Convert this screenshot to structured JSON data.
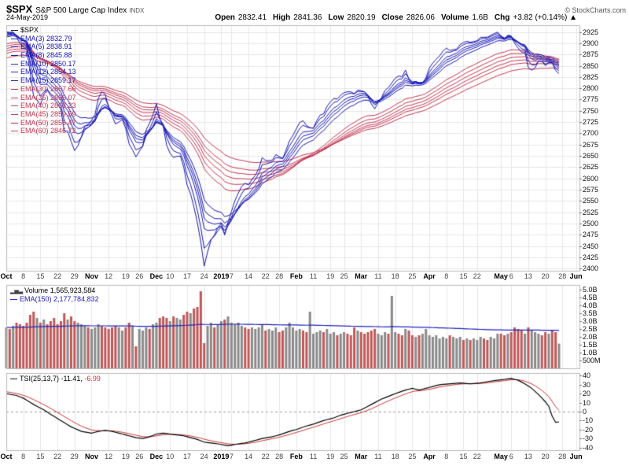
{
  "header": {
    "symbol": "$SPX",
    "name": "S&P 500 Large Cap Index",
    "exchange": "INDX",
    "date": "24-May-2019",
    "attribution": "© StockCharts.com",
    "quote": [
      {
        "label": "Open",
        "value": "2832.41"
      },
      {
        "label": "High",
        "value": "2841.36"
      },
      {
        "label": "Low",
        "value": "2820.19"
      },
      {
        "label": "Close",
        "value": "2826.06"
      },
      {
        "label": "Volume",
        "value": "1.6B"
      },
      {
        "label": "Chg",
        "value": "+3.82 (+0.14%) ▲"
      }
    ]
  },
  "legend": {
    "symbol_label": "$SPX",
    "emas": [
      {
        "label": "EMA(3)",
        "value": "2832.79",
        "group": "fast"
      },
      {
        "label": "EMA(5)",
        "value": "2838.91",
        "group": "fast"
      },
      {
        "label": "EMA(8)",
        "value": "2845.88",
        "group": "fast"
      },
      {
        "label": "EMA(10)",
        "value": "2850.17",
        "group": "fast"
      },
      {
        "label": "EMA(12)",
        "value": "2854.13",
        "group": "fast"
      },
      {
        "label": "EMA(15)",
        "value": "2859.17",
        "group": "fast"
      },
      {
        "label": "EMA(30)",
        "value": "2867.66",
        "group": "slow"
      },
      {
        "label": "EMA(35)",
        "value": "2866.07",
        "group": "slow"
      },
      {
        "label": "EMA(40)",
        "value": "2863.23",
        "group": "slow"
      },
      {
        "label": "EMA(45)",
        "value": "2859.59",
        "group": "slow"
      },
      {
        "label": "EMA(50)",
        "value": "2855.47",
        "group": "slow"
      },
      {
        "label": "EMA(60)",
        "value": "2846.72",
        "group": "slow"
      }
    ]
  },
  "volume_panel": {
    "label": "Volume",
    "value": "1,565,923,584",
    "ema_label": "EMA(150)",
    "ema_value": "2,177,784,832"
  },
  "tsi_panel": {
    "label": "TSI(25,13,7)",
    "value": "-11.41,",
    "signal_value": "-6.99"
  },
  "colors": {
    "ema_fast": "#1414b4",
    "ema_slow": "#c23450",
    "volume_up": "#8a8a8a",
    "volume_down": "#c05858",
    "volume_ema": "#2020c0",
    "tsi_line": "#000000",
    "tsi_signal": "#d03030",
    "grid": "#e7e7e7",
    "border": "#b8b8b8",
    "axis_text": "#111111"
  },
  "chart_data": {
    "type": "line",
    "total_days": 168,
    "x_labels": [
      {
        "t": "Oct",
        "d": 0,
        "b": true
      },
      {
        "t": "8",
        "d": 5
      },
      {
        "t": "15",
        "d": 10
      },
      {
        "t": "22",
        "d": 15
      },
      {
        "t": "29",
        "d": 20
      },
      {
        "t": "Nov",
        "d": 25,
        "b": true
      },
      {
        "t": "12",
        "d": 30
      },
      {
        "t": "19",
        "d": 35
      },
      {
        "t": "26",
        "d": 39
      },
      {
        "t": "Dec",
        "d": 44,
        "b": true
      },
      {
        "t": "10",
        "d": 48
      },
      {
        "t": "17",
        "d": 53
      },
      {
        "t": "24",
        "d": 58
      },
      {
        "t": "2019",
        "d": 63,
        "b": true
      },
      {
        "t": "7",
        "d": 66
      },
      {
        "t": "14",
        "d": 71
      },
      {
        "t": "22",
        "d": 76
      },
      {
        "t": "28",
        "d": 80
      },
      {
        "t": "Feb",
        "d": 85,
        "b": true
      },
      {
        "t": "11",
        "d": 90
      },
      {
        "t": "19",
        "d": 95
      },
      {
        "t": "25",
        "d": 99
      },
      {
        "t": "Mar",
        "d": 104,
        "b": true
      },
      {
        "t": "11",
        "d": 109
      },
      {
        "t": "18",
        "d": 114
      },
      {
        "t": "25",
        "d": 119
      },
      {
        "t": "Apr",
        "d": 124,
        "b": true
      },
      {
        "t": "8",
        "d": 129
      },
      {
        "t": "15",
        "d": 134
      },
      {
        "t": "22",
        "d": 138
      },
      {
        "t": "May",
        "d": 145,
        "b": true
      },
      {
        "t": "6",
        "d": 148
      },
      {
        "t": "13",
        "d": 153
      },
      {
        "t": "20",
        "d": 158
      },
      {
        "t": "28",
        "d": 163
      },
      {
        "t": "Jun",
        "d": 167,
        "b": true
      }
    ],
    "price": {
      "ylim": [
        2395,
        2940
      ],
      "yticks": [
        2400,
        2425,
        2450,
        2475,
        2500,
        2525,
        2550,
        2575,
        2600,
        2625,
        2650,
        2675,
        2700,
        2725,
        2750,
        2775,
        2800,
        2825,
        2850,
        2875,
        2900,
        2925
      ],
      "fast_periods": [
        3,
        5,
        8,
        10,
        12,
        15
      ],
      "slow_periods": [
        30,
        35,
        40,
        45,
        50,
        60
      ],
      "closes": [
        2925,
        2923,
        2926,
        2902,
        2886,
        2884,
        2880,
        2786,
        2728,
        2767,
        2750,
        2810,
        2809,
        2769,
        2768,
        2756,
        2741,
        2656,
        2706,
        2659,
        2641,
        2683,
        2712,
        2740,
        2723,
        2738,
        2755,
        2814,
        2807,
        2781,
        2726,
        2722,
        2702,
        2730,
        2736,
        2691,
        2642,
        2650,
        2632,
        2673,
        2682,
        2744,
        2738,
        2760,
        2790,
        2700,
        2696,
        2633,
        2638,
        2637,
        2651,
        2651,
        2600,
        2546,
        2546,
        2507,
        2467,
        2417,
        2351,
        2468,
        2489,
        2486,
        2507,
        2510,
        2448,
        2532,
        2550,
        2574,
        2585,
        2597,
        2596,
        2582,
        2610,
        2616,
        2636,
        2671,
        2633,
        2639,
        2642,
        2665,
        2644,
        2640,
        2681,
        2704,
        2707,
        2725,
        2738,
        2732,
        2706,
        2708,
        2710,
        2745,
        2753,
        2746,
        2776,
        2780,
        2785,
        2775,
        2793,
        2796,
        2794,
        2792,
        2784,
        2804,
        2793,
        2790,
        2771,
        2749,
        2743,
        2783,
        2791,
        2811,
        2808,
        2822,
        2833,
        2832,
        2824,
        2855,
        2801,
        2798,
        2818,
        2805,
        2815,
        2834,
        2867,
        2867,
        2873,
        2879,
        2893,
        2896,
        2878,
        2888,
        2888,
        2907,
        2906,
        2907,
        2900,
        2905,
        2908,
        2920,
        2914,
        2913,
        2922,
        2925,
        2928,
        2906,
        2900,
        2928,
        2914,
        2884,
        2879,
        2871,
        2881,
        2812,
        2834,
        2851,
        2876,
        2860,
        2840,
        2864,
        2856,
        2822,
        2826
      ]
    },
    "volume": {
      "ylim": [
        0,
        5.3
      ],
      "yticks": [
        {
          "v": 0.5,
          "label": "500M"
        },
        {
          "v": 1,
          "label": "1.0B"
        },
        {
          "v": 1.5,
          "label": "1.5B"
        },
        {
          "v": 2,
          "label": "2.0B"
        },
        {
          "v": 2.5,
          "label": "2.5B"
        },
        {
          "v": 3,
          "label": "3.0B"
        },
        {
          "v": 3.5,
          "label": "3.5B"
        },
        {
          "v": 4,
          "label": "4.0B"
        },
        {
          "v": 4.5,
          "label": "4.5B"
        },
        {
          "v": 5,
          "label": "5.0B"
        }
      ],
      "ema_period": 150,
      "ema_seed": 2.6,
      "values": [
        2.6,
        2.5,
        2.7,
        2.9,
        2.8,
        2.7,
        2.9,
        3.4,
        3.6,
        3.2,
        2.9,
        3.1,
        2.8,
        3.0,
        3.2,
        2.8,
        3.0,
        3.5,
        3.1,
        3.3,
        3.0,
        2.9,
        2.8,
        2.7,
        2.6,
        2.5,
        2.6,
        2.8,
        2.7,
        2.6,
        2.5,
        2.6,
        2.7,
        2.6,
        2.4,
        2.6,
        2.9,
        2.7,
        1.4,
        2.5,
        2.4,
        2.6,
        2.5,
        2.8,
        2.9,
        3.2,
        3.3,
        3.2,
        3.0,
        3.3,
        3.2,
        3.1,
        3.4,
        3.6,
        3.5,
        3.8,
        3.9,
        4.9,
        1.6,
        2.7,
        2.9,
        2.6,
        2.8,
        3.0,
        3.1,
        3.3,
        2.9,
        2.8,
        2.9,
        2.7,
        2.6,
        2.5,
        2.6,
        2.5,
        2.6,
        2.8,
        2.4,
        2.5,
        2.4,
        2.6,
        2.3,
        2.4,
        2.6,
        2.9,
        2.6,
        2.4,
        2.5,
        2.4,
        2.3,
        3.6,
        2.2,
        2.3,
        2.4,
        2.3,
        2.5,
        2.2,
        2.3,
        2.1,
        2.2,
        2.3,
        2.2,
        2.1,
        2.6,
        2.4,
        2.3,
        2.2,
        2.3,
        2.4,
        2.5,
        2.2,
        2.1,
        2.3,
        2.2,
        4.6,
        2.3,
        2.2,
        2.1,
        2.5,
        2.4,
        2.1,
        2.0,
        2.1,
        2.2,
        2.5,
        2.1,
        2.0,
        2.1,
        1.9,
        2.0,
        1.9,
        2.1,
        2.0,
        1.9,
        2.0,
        1.8,
        1.9,
        1.8,
        1.9,
        1.8,
        2.0,
        1.9,
        1.8,
        2.0,
        1.9,
        2.2,
        2.2,
        2.1,
        2.2,
        2.3,
        2.6,
        2.5,
        2.4,
        2.2,
        2.6,
        2.4,
        2.3,
        2.2,
        2.1,
        2.3,
        2.2,
        2.4,
        2.3,
        1.57
      ]
    },
    "tsi": {
      "ylim": [
        -43,
        43
      ],
      "yticks": [
        -40,
        -30,
        -20,
        -10,
        0,
        10,
        20,
        30,
        40
      ],
      "signal_period": 7,
      "signal_seed": 23,
      "keypoints": [
        [
          0,
          20
        ],
        [
          3,
          18
        ],
        [
          5,
          15
        ],
        [
          8,
          8
        ],
        [
          11,
          2
        ],
        [
          13,
          -3
        ],
        [
          16,
          -10
        ],
        [
          19,
          -17
        ],
        [
          22,
          -22
        ],
        [
          25,
          -24
        ],
        [
          27,
          -22
        ],
        [
          29,
          -21
        ],
        [
          31,
          -22
        ],
        [
          34,
          -25
        ],
        [
          36,
          -27
        ],
        [
          38,
          -29
        ],
        [
          40,
          -30
        ],
        [
          42,
          -28
        ],
        [
          44,
          -25
        ],
        [
          46,
          -24
        ],
        [
          48,
          -25
        ],
        [
          50,
          -26
        ],
        [
          52,
          -27
        ],
        [
          54,
          -29
        ],
        [
          56,
          -31
        ],
        [
          58,
          -34
        ],
        [
          60,
          -35
        ],
        [
          62,
          -36
        ],
        [
          65,
          -38
        ],
        [
          68,
          -36
        ],
        [
          70,
          -35
        ],
        [
          73,
          -32
        ],
        [
          75,
          -30
        ],
        [
          78,
          -28
        ],
        [
          80,
          -26
        ],
        [
          83,
          -22
        ],
        [
          85,
          -20
        ],
        [
          88,
          -16
        ],
        [
          90,
          -14
        ],
        [
          93,
          -10
        ],
        [
          96,
          -7
        ],
        [
          98,
          -4
        ],
        [
          100,
          -2
        ],
        [
          104,
          2
        ],
        [
          107,
          8
        ],
        [
          110,
          14
        ],
        [
          114,
          20
        ],
        [
          117,
          24
        ],
        [
          119,
          26
        ],
        [
          121,
          24
        ],
        [
          124,
          27
        ],
        [
          127,
          30
        ],
        [
          130,
          31
        ],
        [
          133,
          32
        ],
        [
          136,
          31
        ],
        [
          139,
          32
        ],
        [
          142,
          34
        ],
        [
          144,
          35
        ],
        [
          146,
          36
        ],
        [
          148,
          37
        ],
        [
          150,
          35
        ],
        [
          152,
          31
        ],
        [
          154,
          26
        ],
        [
          156,
          19
        ],
        [
          158,
          11
        ],
        [
          159,
          6
        ],
        [
          160,
          -5
        ],
        [
          161,
          -12
        ],
        [
          162,
          -11.41
        ]
      ]
    }
  }
}
